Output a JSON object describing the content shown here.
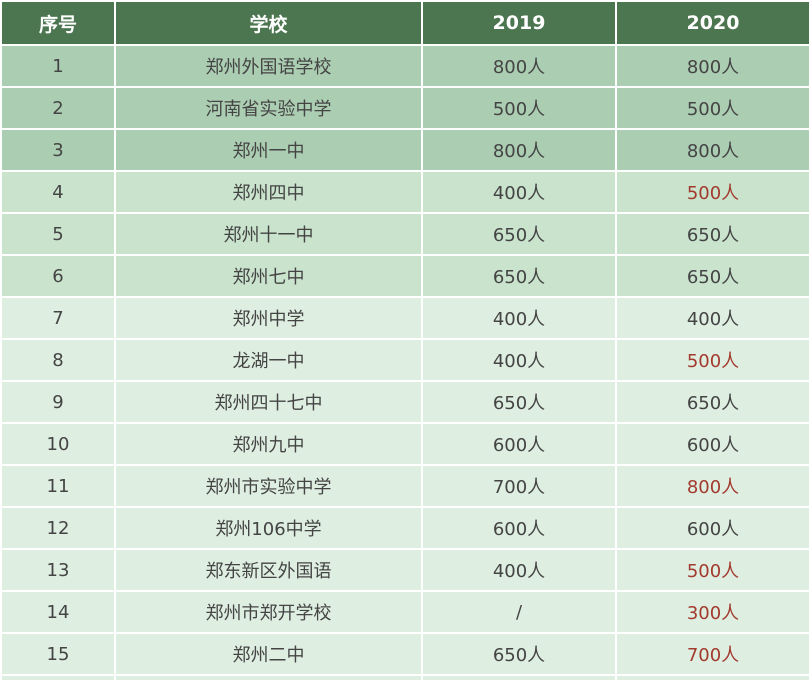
{
  "headers": [
    "序号",
    "学校",
    "2019",
    "2020"
  ],
  "colors": {
    "header_bg": "#4c7650",
    "tier1_bg": "#abcdb2",
    "tier2_bg": "#c9e3cd",
    "tier3_bg": "#deeee1",
    "increase_text": "#a33a2e"
  },
  "rows": [
    {
      "no": "1",
      "school": "郑州外国语学校",
      "y2019": "800人",
      "y2020": "800人"
    },
    {
      "no": "2",
      "school": "河南省实验中学",
      "y2019": "500人",
      "y2020": "500人"
    },
    {
      "no": "3",
      "school": "郑州一中",
      "y2019": "800人",
      "y2020": "800人"
    },
    {
      "no": "4",
      "school": "郑州四中",
      "y2019": "400人",
      "y2020": "500人"
    },
    {
      "no": "5",
      "school": "郑州十一中",
      "y2019": "650人",
      "y2020": "650人"
    },
    {
      "no": "6",
      "school": "郑州七中",
      "y2019": "650人",
      "y2020": "650人"
    },
    {
      "no": "7",
      "school": "郑州中学",
      "y2019": "400人",
      "y2020": "400人"
    },
    {
      "no": "8",
      "school": "龙湖一中",
      "y2019": "400人",
      "y2020": "500人"
    },
    {
      "no": "9",
      "school": "郑州四十七中",
      "y2019": "650人",
      "y2020": "650人"
    },
    {
      "no": "10",
      "school": "郑州九中",
      "y2019": "600人",
      "y2020": "600人"
    },
    {
      "no": "11",
      "school": "郑州市实验中学",
      "y2019": "700人",
      "y2020": "800人"
    },
    {
      "no": "12",
      "school": "郑州106中学",
      "y2019": "600人",
      "y2020": "600人"
    },
    {
      "no": "13",
      "school": "郑东新区外国语",
      "y2019": "400人",
      "y2020": "500人"
    },
    {
      "no": "14",
      "school": "郑州市郑开学校",
      "y2019": "/",
      "y2020": "300人"
    },
    {
      "no": "15",
      "school": "郑州二中",
      "y2019": "650人",
      "y2020": "700人"
    }
  ]
}
